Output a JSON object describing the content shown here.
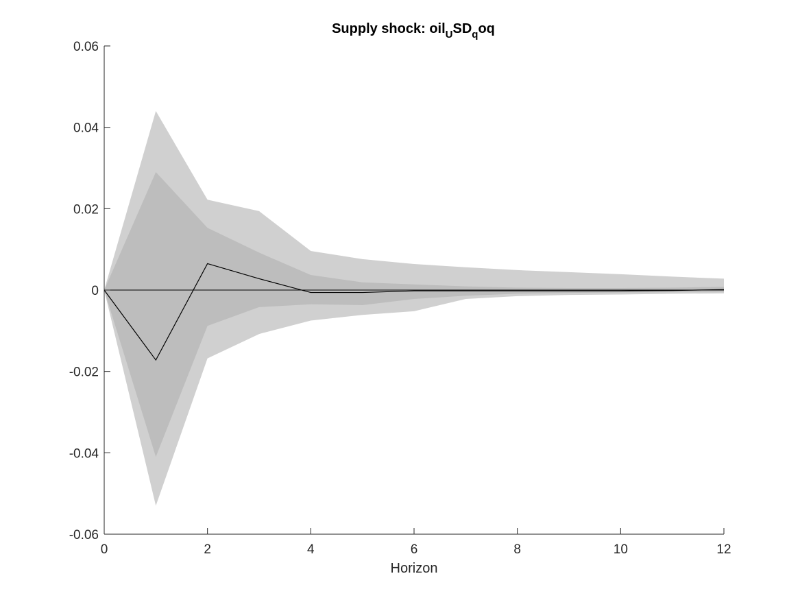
{
  "chart_data": {
    "type": "area",
    "title": {
      "parts": [
        {
          "text": "Supply shock: oil",
          "sub": false
        },
        {
          "text": "U",
          "sub": true
        },
        {
          "text": "SD",
          "sub": false
        },
        {
          "text": "q",
          "sub": true
        },
        {
          "text": "oq",
          "sub": false
        }
      ]
    },
    "xlabel": "Horizon",
    "ylabel": "",
    "xlim": [
      0,
      12
    ],
    "ylim": [
      -0.06,
      0.06
    ],
    "x_ticks": [
      0,
      2,
      4,
      6,
      8,
      10,
      12
    ],
    "x_tick_labels": [
      "0",
      "2",
      "4",
      "6",
      "8",
      "10",
      "12"
    ],
    "y_ticks": [
      -0.06,
      -0.04,
      -0.02,
      0,
      0.02,
      0.04,
      0.06
    ],
    "y_tick_labels": [
      "-0.06",
      "-0.04",
      "-0.02",
      "0",
      "0.02",
      "0.04",
      "0.06"
    ],
    "grid": false,
    "zero_line": true,
    "x": [
      0,
      1,
      2,
      3,
      4,
      5,
      6,
      7,
      8,
      9,
      10,
      11,
      12
    ],
    "bands": [
      {
        "level": "outer",
        "color": "#d0d0d0",
        "upper": [
          0,
          0.044,
          0.0222,
          0.0194,
          0.0096,
          0.0076,
          0.0064,
          0.0056,
          0.0049,
          0.0044,
          0.0039,
          0.0033,
          0.0028
        ],
        "lower": [
          0,
          -0.053,
          -0.0168,
          -0.0108,
          -0.0075,
          -0.0061,
          -0.0052,
          -0.0022,
          -0.0015,
          -0.0012,
          -0.0011,
          -0.0009,
          -0.0008
        ]
      },
      {
        "level": "inner",
        "color": "#bdbdbd",
        "upper": [
          0,
          0.029,
          0.0153,
          0.0092,
          0.0037,
          0.0019,
          0.0014,
          0.0009,
          0.0006,
          0.0005,
          0.0005,
          0.0006,
          0.0008
        ],
        "lower": [
          0,
          -0.041,
          -0.0088,
          -0.0042,
          -0.0035,
          -0.0037,
          -0.0022,
          -0.0014,
          -0.0009,
          -0.0007,
          -0.0006,
          -0.0005,
          -0.0004
        ]
      }
    ],
    "series": [
      {
        "color": "#000000",
        "values": [
          0,
          -0.0172,
          0.0065,
          0.0028,
          -0.0006,
          -0.0006,
          -0.0002,
          -0.0002,
          -0.0002,
          -0.0002,
          -0.0002,
          -0.0001,
          0.0001
        ]
      }
    ]
  }
}
